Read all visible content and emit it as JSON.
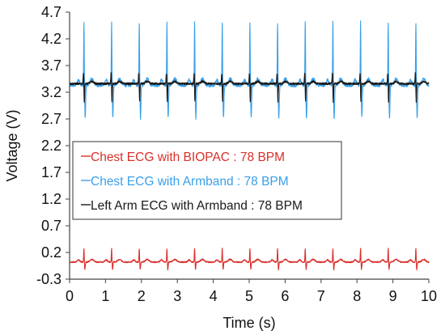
{
  "chart_data": {
    "type": "line",
    "xlabel": "Time (s)",
    "ylabel": "Voltage (V)",
    "xlim": [
      0,
      10
    ],
    "ylim": [
      -0.3,
      4.7
    ],
    "xticks": [
      "0",
      "1",
      "2",
      "3",
      "4",
      "5",
      "6",
      "7",
      "8",
      "9",
      "10"
    ],
    "yticks": [
      "-0.3",
      "0.2",
      "0.7",
      "1.2",
      "1.7",
      "2.2",
      "2.7",
      "3.2",
      "3.7",
      "4.2",
      "4.7"
    ],
    "grid": "none",
    "legend_position": "center-left",
    "heart_rate_bpm": 78,
    "series": [
      {
        "name": "Chest ECG with BIOPAC : 78 BPM",
        "color": "#d9302a",
        "baseline": 0.02,
        "peak": 0.28,
        "trough": -0.12
      },
      {
        "name": "Chest ECG with Armband : 78 BPM",
        "color": "#3aa0e8",
        "baseline": 3.33,
        "peak": 4.52,
        "trough": 2.72
      },
      {
        "name": "Left Arm ECG with Armband : 78 BPM",
        "color": "#1a1a1a",
        "baseline": 3.36,
        "peak": 3.57,
        "trough": 3.0
      }
    ],
    "beat_times": [
      0.4,
      1.17,
      1.94,
      2.71,
      3.48,
      4.25,
      5.02,
      5.79,
      6.56,
      7.33,
      8.1,
      8.87,
      9.64
    ]
  }
}
